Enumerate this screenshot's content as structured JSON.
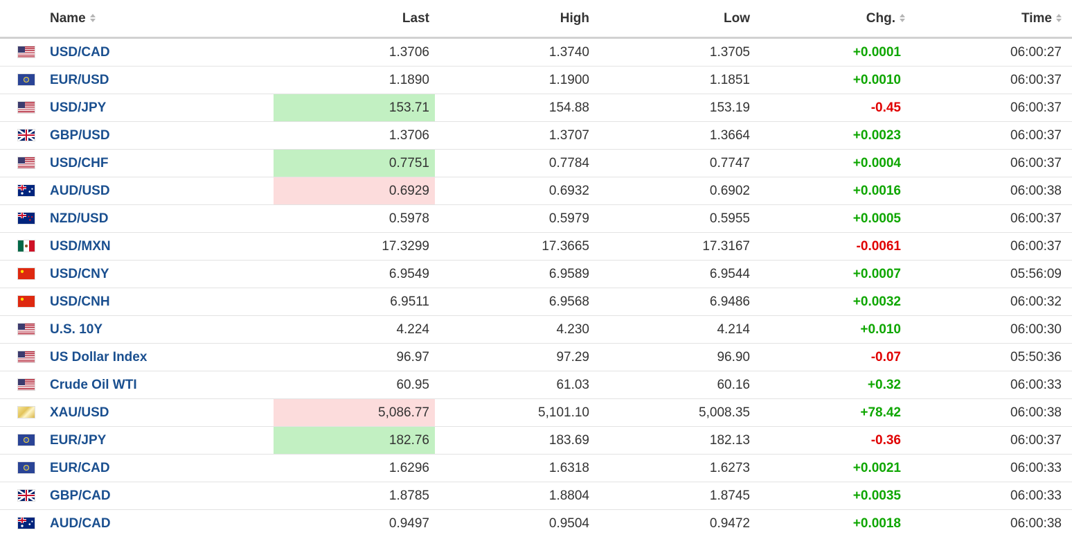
{
  "columns": {
    "name": "Name",
    "last": "Last",
    "high": "High",
    "low": "Low",
    "chg": "Chg.",
    "time": "Time"
  },
  "rows": [
    {
      "flag": "us-flag-icon",
      "name": "USD/CAD",
      "last": "1.3706",
      "high": "1.3740",
      "low": "1.3705",
      "chg": "+0.0001",
      "time": "06:00:27",
      "direction": "pos",
      "flash": "none"
    },
    {
      "flag": "eu-flag-icon",
      "name": "EUR/USD",
      "last": "1.1890",
      "high": "1.1900",
      "low": "1.1851",
      "chg": "+0.0010",
      "time": "06:00:37",
      "direction": "pos",
      "flash": "none"
    },
    {
      "flag": "us-flag-icon",
      "name": "USD/JPY",
      "last": "153.71",
      "high": "154.88",
      "low": "153.19",
      "chg": "-0.45",
      "time": "06:00:37",
      "direction": "neg",
      "flash": "up"
    },
    {
      "flag": "gb-flag-icon",
      "name": "GBP/USD",
      "last": "1.3706",
      "high": "1.3707",
      "low": "1.3664",
      "chg": "+0.0023",
      "time": "06:00:37",
      "direction": "pos",
      "flash": "none"
    },
    {
      "flag": "us-flag-icon",
      "name": "USD/CHF",
      "last": "0.7751",
      "high": "0.7784",
      "low": "0.7747",
      "chg": "+0.0004",
      "time": "06:00:37",
      "direction": "pos",
      "flash": "up"
    },
    {
      "flag": "au-flag-icon",
      "name": "AUD/USD",
      "last": "0.6929",
      "high": "0.6932",
      "low": "0.6902",
      "chg": "+0.0016",
      "time": "06:00:38",
      "direction": "pos",
      "flash": "down"
    },
    {
      "flag": "nz-flag-icon",
      "name": "NZD/USD",
      "last": "0.5978",
      "high": "0.5979",
      "low": "0.5955",
      "chg": "+0.0005",
      "time": "06:00:37",
      "direction": "pos",
      "flash": "none"
    },
    {
      "flag": "mx-flag-icon",
      "name": "USD/MXN",
      "last": "17.3299",
      "high": "17.3665",
      "low": "17.3167",
      "chg": "-0.0061",
      "time": "06:00:37",
      "direction": "neg",
      "flash": "none"
    },
    {
      "flag": "cn-flag-icon",
      "name": "USD/CNY",
      "last": "6.9549",
      "high": "6.9589",
      "low": "6.9544",
      "chg": "+0.0007",
      "time": "05:56:09",
      "direction": "pos",
      "flash": "none"
    },
    {
      "flag": "cn-flag-icon",
      "name": "USD/CNH",
      "last": "6.9511",
      "high": "6.9568",
      "low": "6.9486",
      "chg": "+0.0032",
      "time": "06:00:32",
      "direction": "pos",
      "flash": "none"
    },
    {
      "flag": "us-flag-icon",
      "name": "U.S. 10Y",
      "last": "4.224",
      "high": "4.230",
      "low": "4.214",
      "chg": "+0.010",
      "time": "06:00:30",
      "direction": "pos",
      "flash": "none"
    },
    {
      "flag": "us-flag-icon",
      "name": "US Dollar Index",
      "last": "96.97",
      "high": "97.29",
      "low": "96.90",
      "chg": "-0.07",
      "time": "05:50:36",
      "direction": "neg",
      "flash": "none"
    },
    {
      "flag": "us-flag-icon",
      "name": "Crude Oil WTI",
      "last": "60.95",
      "high": "61.03",
      "low": "60.16",
      "chg": "+0.32",
      "time": "06:00:33",
      "direction": "pos",
      "flash": "none"
    },
    {
      "flag": "gold-bar-icon",
      "name": "XAU/USD",
      "last": "5,086.77",
      "high": "5,101.10",
      "low": "5,008.35",
      "chg": "+78.42",
      "time": "06:00:38",
      "direction": "pos",
      "flash": "down"
    },
    {
      "flag": "eu-flag-icon",
      "name": "EUR/JPY",
      "last": "182.76",
      "high": "183.69",
      "low": "182.13",
      "chg": "-0.36",
      "time": "06:00:37",
      "direction": "neg",
      "flash": "up"
    },
    {
      "flag": "eu-flag-icon",
      "name": "EUR/CAD",
      "last": "1.6296",
      "high": "1.6318",
      "low": "1.6273",
      "chg": "+0.0021",
      "time": "06:00:33",
      "direction": "pos",
      "flash": "none"
    },
    {
      "flag": "gb-flag-icon",
      "name": "GBP/CAD",
      "last": "1.8785",
      "high": "1.8804",
      "low": "1.8745",
      "chg": "+0.0035",
      "time": "06:00:33",
      "direction": "pos",
      "flash": "none"
    },
    {
      "flag": "au-flag-icon",
      "name": "AUD/CAD",
      "last": "0.9497",
      "high": "0.9504",
      "low": "0.9472",
      "chg": "+0.0018",
      "time": "06:00:38",
      "direction": "pos",
      "flash": "none"
    }
  ],
  "colors": {
    "positive": "#0ea600",
    "negative": "#e00000",
    "link": "#1a4f8f",
    "flash_up": "#c2f0c2",
    "flash_down": "#fcdcdc"
  }
}
